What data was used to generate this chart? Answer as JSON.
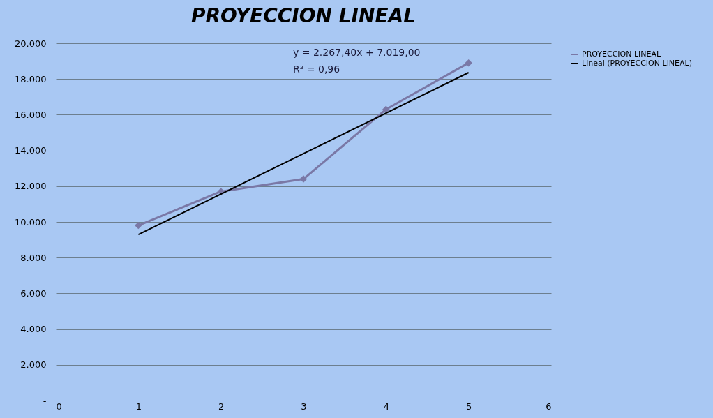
{
  "chart_data": {
    "type": "line",
    "title": "PROYECCION LINEAL",
    "x": [
      1,
      2,
      3,
      4,
      5
    ],
    "series": [
      {
        "name": "PROYECCION LINEAL",
        "color": "#7a78a6",
        "values": [
          9800,
          11700,
          12400,
          16300,
          18900
        ],
        "marker": "diamond"
      },
      {
        "name": "Lineal (PROYECCION LINEAL)",
        "color": "#000000",
        "type": "line",
        "x": [
          1,
          5
        ],
        "values": [
          9290,
          18360
        ],
        "marker": "none"
      }
    ],
    "xlim": [
      0,
      6
    ],
    "xticks": [
      0,
      1,
      2,
      3,
      4,
      5,
      6
    ],
    "ylim": [
      0,
      20000
    ],
    "yticks": [
      {
        "value": 0,
        "label": "-"
      },
      {
        "value": 2000,
        "label": "2.000"
      },
      {
        "value": 4000,
        "label": "4.000"
      },
      {
        "value": 6000,
        "label": "6.000"
      },
      {
        "value": 8000,
        "label": "8.000"
      },
      {
        "value": 10000,
        "label": "10.000"
      },
      {
        "value": 12000,
        "label": "12.000"
      },
      {
        "value": 14000,
        "label": "14.000"
      },
      {
        "value": 16000,
        "label": "16.000"
      },
      {
        "value": 18000,
        "label": "18.000"
      },
      {
        "value": 20000,
        "label": "20.000"
      }
    ],
    "grid": "y",
    "legend": "right",
    "annotations": [
      "y = 2.267,40x + 7.019,00",
      "R² = 0,96"
    ]
  }
}
